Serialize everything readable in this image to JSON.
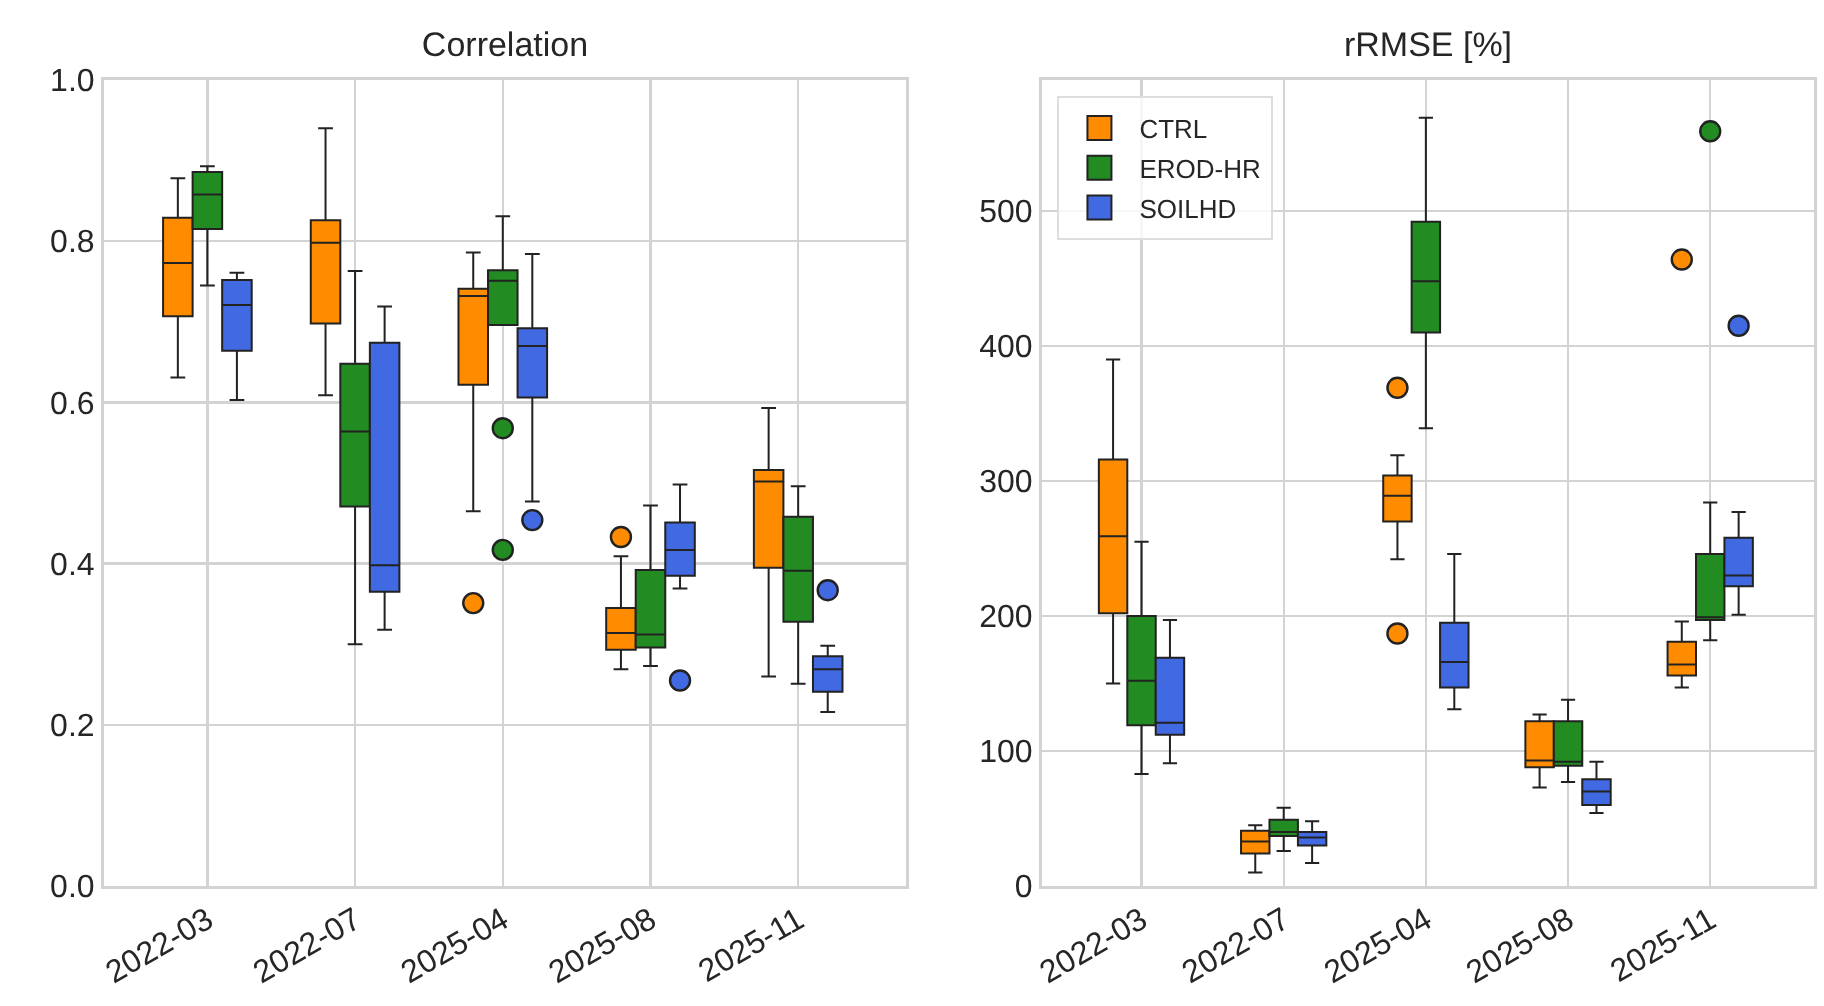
{
  "chart_data": [
    {
      "type": "box",
      "title": "Correlation",
      "categories": [
        "2022-03",
        "2022-07",
        "2025-04",
        "2025-08",
        "2025-11"
      ],
      "ylim": [
        0,
        1
      ],
      "yticks": [
        {
          "value": 0,
          "label": "0.0"
        },
        0.2,
        0.4,
        0.6,
        0.8,
        {
          "value": 1,
          "label": "1.0"
        }
      ],
      "grid": true,
      "legend": false,
      "series": [
        {
          "color": "#ff8c00",
          "boxes": [
            {
              "low": 0.631,
              "q1": 0.707,
              "median": 0.773,
              "q3": 0.829,
              "high": 0.878
            },
            {
              "low": 0.609,
              "q1": 0.698,
              "median": 0.798,
              "q3": 0.826,
              "high": 0.94
            },
            {
              "low": 0.465,
              "q1": 0.622,
              "median": 0.732,
              "q3": 0.741,
              "high": 0.786,
              "outliers": [
                0.351
              ]
            },
            {
              "low": 0.269,
              "q1": 0.293,
              "median": 0.314,
              "q3": 0.345,
              "high": 0.409,
              "outliers": [
                0.433
              ]
            },
            {
              "low": 0.26,
              "q1": 0.395,
              "median": 0.502,
              "q3": 0.516,
              "high": 0.593
            }
          ]
        },
        {
          "color": "#228b22",
          "boxes": [
            {
              "low": 0.745,
              "q1": 0.815,
              "median": 0.858,
              "q3": 0.886,
              "high": 0.893
            },
            {
              "low": 0.3,
              "q1": 0.471,
              "median": 0.564,
              "q3": 0.648,
              "high": 0.763
            },
            {
              "low": 0.696,
              "q1": 0.696,
              "median": 0.751,
              "q3": 0.764,
              "high": 0.831,
              "outliers": [
                0.568,
                0.417
              ]
            },
            {
              "low": 0.273,
              "q1": 0.296,
              "median": 0.312,
              "q3": 0.392,
              "high": 0.472
            },
            {
              "low": 0.251,
              "q1": 0.328,
              "median": 0.391,
              "q3": 0.458,
              "high": 0.496
            }
          ]
        },
        {
          "color": "#4169e1",
          "boxes": [
            {
              "low": 0.603,
              "q1": 0.664,
              "median": 0.721,
              "q3": 0.752,
              "high": 0.761
            },
            {
              "low": 0.318,
              "q1": 0.365,
              "median": 0.398,
              "q3": 0.674,
              "high": 0.719
            },
            {
              "low": 0.477,
              "q1": 0.606,
              "median": 0.67,
              "q3": 0.692,
              "high": 0.784,
              "outliers": [
                0.454
              ]
            },
            {
              "low": 0.369,
              "q1": 0.385,
              "median": 0.417,
              "q3": 0.451,
              "high": 0.498,
              "outliers": [
                0.255
              ]
            },
            {
              "low": 0.216,
              "q1": 0.241,
              "median": 0.269,
              "q3": 0.285,
              "high": 0.298,
              "outliers": [
                0.367
              ]
            }
          ]
        }
      ]
    },
    {
      "type": "box",
      "title": "rRMSE [%]",
      "categories": [
        "2022-03",
        "2022-07",
        "2025-04",
        "2025-08",
        "2025-11"
      ],
      "ylim": [
        0,
        597
      ],
      "yticks": [
        0,
        100,
        200,
        300,
        400,
        500
      ],
      "grid": true,
      "legend": "top left",
      "series": [
        {
          "name": "CTRL",
          "color": "#ff8c00",
          "boxes": [
            {
              "low": 150,
              "q1": 202,
              "median": 259,
              "q3": 316,
              "high": 390
            },
            {
              "low": 10,
              "q1": 24,
              "median": 33,
              "q3": 41,
              "high": 45
            },
            {
              "low": 242,
              "q1": 270,
              "median": 289,
              "q3": 304,
              "high": 319,
              "outliers": [
                369,
                187
              ]
            },
            {
              "low": 73,
              "q1": 88,
              "median": 93,
              "q3": 122,
              "high": 127
            },
            {
              "low": 147,
              "q1": 156,
              "median": 164,
              "q3": 181,
              "high": 196,
              "outliers": [
                464
              ]
            }
          ]
        },
        {
          "name": "EROD-HR",
          "color": "#228b22",
          "boxes": [
            {
              "low": 83,
              "q1": 119,
              "median": 152,
              "q3": 200,
              "high": 255
            },
            {
              "low": 26,
              "q1": 37,
              "median": 40,
              "q3": 49,
              "high": 58
            },
            {
              "low": 339,
              "q1": 410,
              "median": 448,
              "q3": 492,
              "high": 569
            },
            {
              "low": 77,
              "q1": 89,
              "median": 92,
              "q3": 122,
              "high": 138
            },
            {
              "low": 182,
              "q1": 197,
              "median": 199,
              "q3": 246,
              "high": 284,
              "outliers": [
                559
              ]
            }
          ]
        },
        {
          "name": "SOILHD",
          "color": "#4169e1",
          "boxes": [
            {
              "low": 91,
              "q1": 112,
              "median": 121,
              "q3": 169,
              "high": 197
            },
            {
              "low": 17,
              "q1": 30,
              "median": 36,
              "q3": 40,
              "high": 48
            },
            {
              "low": 131,
              "q1": 147,
              "median": 166,
              "q3": 195,
              "high": 246
            },
            {
              "low": 54,
              "q1": 60,
              "median": 70,
              "q3": 79,
              "high": 92
            },
            {
              "low": 201,
              "q1": 222,
              "median": 230,
              "q3": 258,
              "high": 277,
              "outliers": [
                415
              ]
            }
          ]
        }
      ]
    }
  ]
}
